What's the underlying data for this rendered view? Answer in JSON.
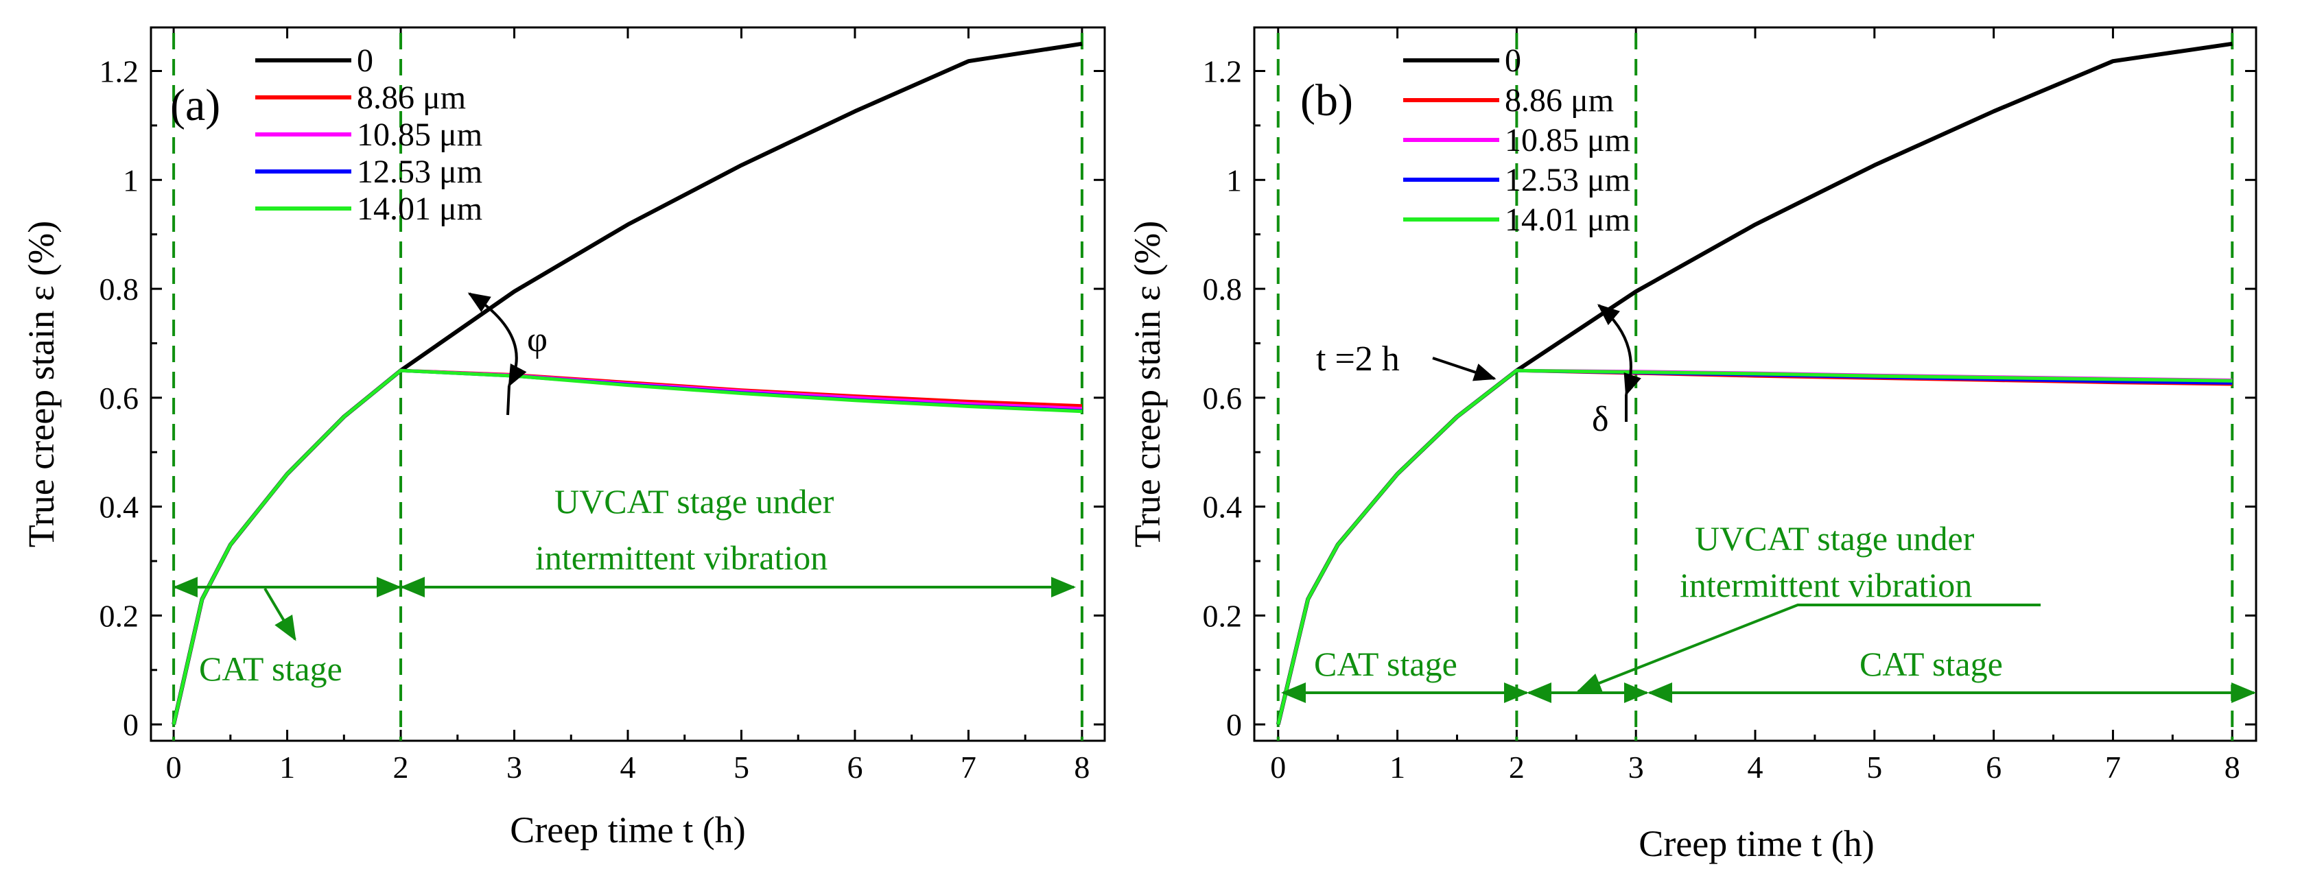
{
  "chart_data": [
    {
      "type": "line",
      "panel_label": "(a)",
      "xlabel": "Creep time t (h)",
      "ylabel": "True creep stain ε (%)",
      "xlim": [
        -0.2,
        8.2
      ],
      "ylim": [
        -0.03,
        1.28
      ],
      "x_ticks": [
        0,
        1,
        2,
        3,
        4,
        5,
        6,
        7,
        8
      ],
      "y_ticks": [
        0,
        0.2,
        0.4,
        0.6,
        0.8,
        1,
        1.2
      ],
      "x_tick_labels": [
        "0",
        "1",
        "2",
        "3",
        "4",
        "5",
        "6",
        "7",
        "8"
      ],
      "y_tick_labels": [
        "0",
        "0.2",
        "0.4",
        "0.6",
        "0.8",
        "1",
        "1.2"
      ],
      "grid": false,
      "legend": "top-left",
      "series": [
        {
          "name": "0",
          "color": "#000000",
          "x": [
            0,
            0.25,
            0.5,
            1,
            1.5,
            2,
            3,
            4,
            5,
            6,
            7,
            8
          ],
          "y": [
            0,
            0.23,
            0.33,
            0.46,
            0.565,
            0.65,
            0.795,
            0.918,
            1.027,
            1.126,
            1.218,
            1.25
          ]
        },
        {
          "name": "8.86 μm",
          "color": "#ff0000",
          "x": [
            0,
            0.25,
            0.5,
            1,
            1.5,
            2,
            3,
            4,
            5,
            6,
            7,
            8
          ],
          "y": [
            0,
            0.23,
            0.33,
            0.46,
            0.565,
            0.65,
            0.642,
            0.628,
            0.614,
            0.603,
            0.593,
            0.585
          ]
        },
        {
          "name": "10.85 μm",
          "color": "#ff00ff",
          "x": [
            0,
            0.25,
            0.5,
            1,
            1.5,
            2,
            3,
            4,
            5,
            6,
            7,
            8
          ],
          "y": [
            0,
            0.23,
            0.33,
            0.46,
            0.565,
            0.65,
            0.641,
            0.626,
            0.612,
            0.6,
            0.589,
            0.58
          ]
        },
        {
          "name": "12.53 μm",
          "color": "#0000ff",
          "x": [
            0,
            0.25,
            0.5,
            1,
            1.5,
            2,
            3,
            4,
            5,
            6,
            7,
            8
          ],
          "y": [
            0,
            0.23,
            0.33,
            0.46,
            0.565,
            0.65,
            0.64,
            0.624,
            0.609,
            0.596,
            0.585,
            0.576
          ]
        },
        {
          "name": "14.01 μm",
          "color": "#22ee22",
          "x": [
            0,
            0.25,
            0.5,
            1,
            1.5,
            2,
            3,
            4,
            5,
            6,
            7,
            8
          ],
          "y": [
            0,
            0.23,
            0.33,
            0.46,
            0.565,
            0.65,
            0.64,
            0.623,
            0.608,
            0.595,
            0.584,
            0.575
          ]
        }
      ],
      "vlines": [
        0,
        2,
        8
      ],
      "annotations": {
        "angle_symbol": "φ",
        "stage_a": "CAT stage",
        "stage_b_line1": "UVCAT stage under",
        "stage_b_line2": "intermittent vibration"
      }
    },
    {
      "type": "line",
      "panel_label": "(b)",
      "xlabel": "Creep time t (h)",
      "ylabel": "True creep stain ε (%)",
      "xlim": [
        -0.2,
        8.2
      ],
      "ylim": [
        -0.03,
        1.28
      ],
      "x_ticks": [
        0,
        1,
        2,
        3,
        4,
        5,
        6,
        7,
        8
      ],
      "y_ticks": [
        0,
        0.2,
        0.4,
        0.6,
        0.8,
        1,
        1.2
      ],
      "x_tick_labels": [
        "0",
        "1",
        "2",
        "3",
        "4",
        "5",
        "6",
        "7",
        "8"
      ],
      "y_tick_labels": [
        "0",
        "0.2",
        "0.4",
        "0.6",
        "0.8",
        "1",
        "1.2"
      ],
      "grid": false,
      "legend": "top-left",
      "series": [
        {
          "name": "0",
          "color": "#000000",
          "x": [
            0,
            0.25,
            0.5,
            1,
            1.5,
            2,
            3,
            4,
            5,
            6,
            7,
            8
          ],
          "y": [
            0,
            0.23,
            0.33,
            0.46,
            0.565,
            0.65,
            0.795,
            0.918,
            1.027,
            1.126,
            1.218,
            1.25
          ]
        },
        {
          "name": "8.86 μm",
          "color": "#ff0000",
          "x": [
            0,
            0.25,
            0.5,
            1,
            1.5,
            2,
            3,
            4,
            5,
            6,
            7,
            8
          ],
          "y": [
            0,
            0.23,
            0.33,
            0.46,
            0.565,
            0.65,
            0.645,
            0.64,
            0.636,
            0.632,
            0.628,
            0.625
          ]
        },
        {
          "name": "10.85 μm",
          "color": "#ff00ff",
          "x": [
            0,
            0.25,
            0.5,
            1,
            1.5,
            2,
            3,
            4,
            5,
            6,
            7,
            8
          ],
          "y": [
            0,
            0.23,
            0.33,
            0.46,
            0.565,
            0.65,
            0.648,
            0.645,
            0.641,
            0.638,
            0.635,
            0.632
          ]
        },
        {
          "name": "12.53 μm",
          "color": "#0000ff",
          "x": [
            0,
            0.25,
            0.5,
            1,
            1.5,
            2,
            3,
            4,
            5,
            6,
            7,
            8
          ],
          "y": [
            0,
            0.23,
            0.33,
            0.46,
            0.565,
            0.65,
            0.646,
            0.642,
            0.638,
            0.634,
            0.63,
            0.627
          ]
        },
        {
          "name": "14.01 μm",
          "color": "#22ee22",
          "x": [
            0,
            0.25,
            0.5,
            1,
            1.5,
            2,
            3,
            4,
            5,
            6,
            7,
            8
          ],
          "y": [
            0,
            0.23,
            0.33,
            0.46,
            0.565,
            0.65,
            0.647,
            0.644,
            0.64,
            0.637,
            0.634,
            0.631
          ]
        }
      ],
      "vlines": [
        0,
        2,
        3,
        8
      ],
      "annotations": {
        "t_label": "t =2 h",
        "angle_symbol": "δ",
        "stage_a": "CAT stage",
        "stage_b_line1": "UVCAT stage under",
        "stage_b_line2": "intermittent vibration",
        "stage_c": "CAT stage"
      }
    }
  ]
}
